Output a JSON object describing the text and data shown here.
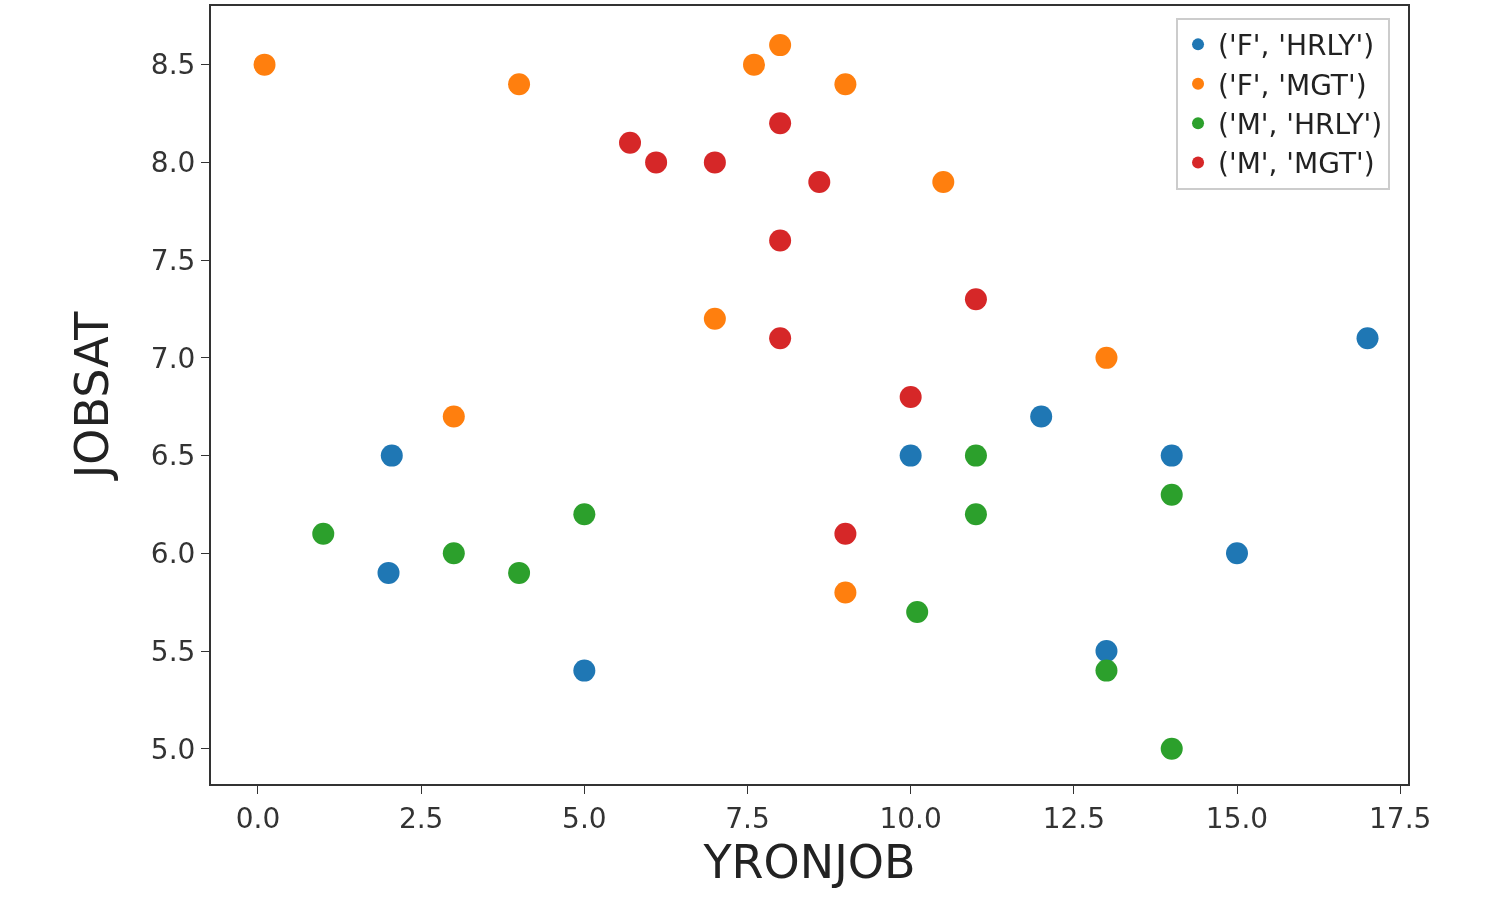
{
  "chart_data": {
    "type": "scatter",
    "xlabel": "YRONJOB",
    "ylabel": "JOBSAT",
    "xlim": [
      -0.72,
      17.62
    ],
    "ylim": [
      4.82,
      8.8
    ],
    "xticks": [
      {
        "value": 0,
        "label": "0.0"
      },
      2.5,
      {
        "value": 5,
        "label": "5.0"
      },
      7.5,
      {
        "value": 10,
        "label": "10.0"
      },
      12.5,
      {
        "value": 15,
        "label": "15.0"
      },
      17.5
    ],
    "yticks": [
      {
        "value": 5,
        "label": "5.0"
      },
      5.5,
      {
        "value": 6,
        "label": "6.0"
      },
      6.5,
      {
        "value": 7,
        "label": "7.0"
      },
      7.5,
      {
        "value": 8,
        "label": "8.0"
      },
      8.5
    ],
    "grid": false,
    "legend": "top right",
    "marker": "circle",
    "series": [
      {
        "name": "('F', 'HRLY')",
        "color": "#1f77b4",
        "x": [
          2.05,
          2,
          5,
          10,
          12,
          14,
          15,
          13,
          17
        ],
        "values": [
          6.5,
          5.9,
          5.4,
          6.5,
          6.7,
          6.5,
          6.0,
          5.5,
          7.1
        ]
      },
      {
        "name": "('F', 'MGT')",
        "color": "#ff7f0e",
        "x": [
          0.1,
          4,
          7.6,
          8,
          9,
          10.5,
          7,
          3,
          13,
          9
        ],
        "values": [
          8.5,
          8.4,
          8.5,
          8.6,
          8.4,
          7.9,
          7.2,
          6.7,
          7.0,
          5.8
        ]
      },
      {
        "name": "('M', 'HRLY')",
        "color": "#2ca02c",
        "x": [
          1,
          3,
          4,
          5,
          10.1,
          11,
          11,
          14,
          13,
          14
        ],
        "values": [
          6.1,
          6.0,
          5.9,
          6.2,
          5.7,
          6.5,
          6.2,
          6.3,
          5.4,
          5.0
        ]
      },
      {
        "name": "('M', 'MGT')",
        "color": "#d62728",
        "x": [
          5.7,
          6.1,
          7,
          8,
          8.6,
          8,
          11,
          8,
          10,
          9
        ],
        "values": [
          8.1,
          8.0,
          8.0,
          8.2,
          7.9,
          7.6,
          7.3,
          7.1,
          6.8,
          6.1
        ]
      }
    ]
  }
}
